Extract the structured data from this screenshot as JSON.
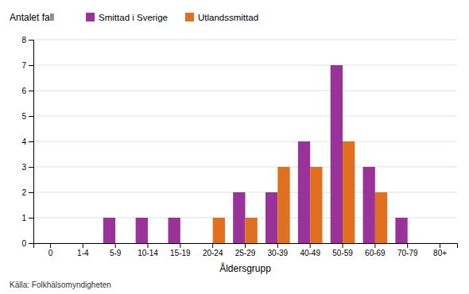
{
  "chart_data": {
    "type": "bar",
    "ylabel": "Antalet fall",
    "xlabel": "Åldersgrupp",
    "annotations": [
      "Källa: Folkhälsomyndigheten"
    ],
    "categories": [
      "0",
      "1-4",
      "5-9",
      "10-14",
      "15-19",
      "20-24",
      "25-29",
      "30-39",
      "40-49",
      "50-59",
      "60-69",
      "70-79",
      "80+"
    ],
    "series": [
      {
        "name": "Smittad i Sverige",
        "color": "#993399",
        "values": [
          0,
          0,
          1,
          1,
          1,
          0,
          2,
          2,
          4,
          7,
          3,
          1,
          0
        ]
      },
      {
        "name": "Utlandssmittad",
        "color": "#e07020",
        "values": [
          0,
          0,
          0,
          0,
          0,
          1,
          1,
          3,
          3,
          4,
          2,
          0,
          0
        ]
      }
    ],
    "ylim": [
      0,
      8
    ],
    "yticks": [
      0,
      1,
      2,
      3,
      4,
      5,
      6,
      7,
      8
    ],
    "grid": true,
    "legend": "top"
  }
}
